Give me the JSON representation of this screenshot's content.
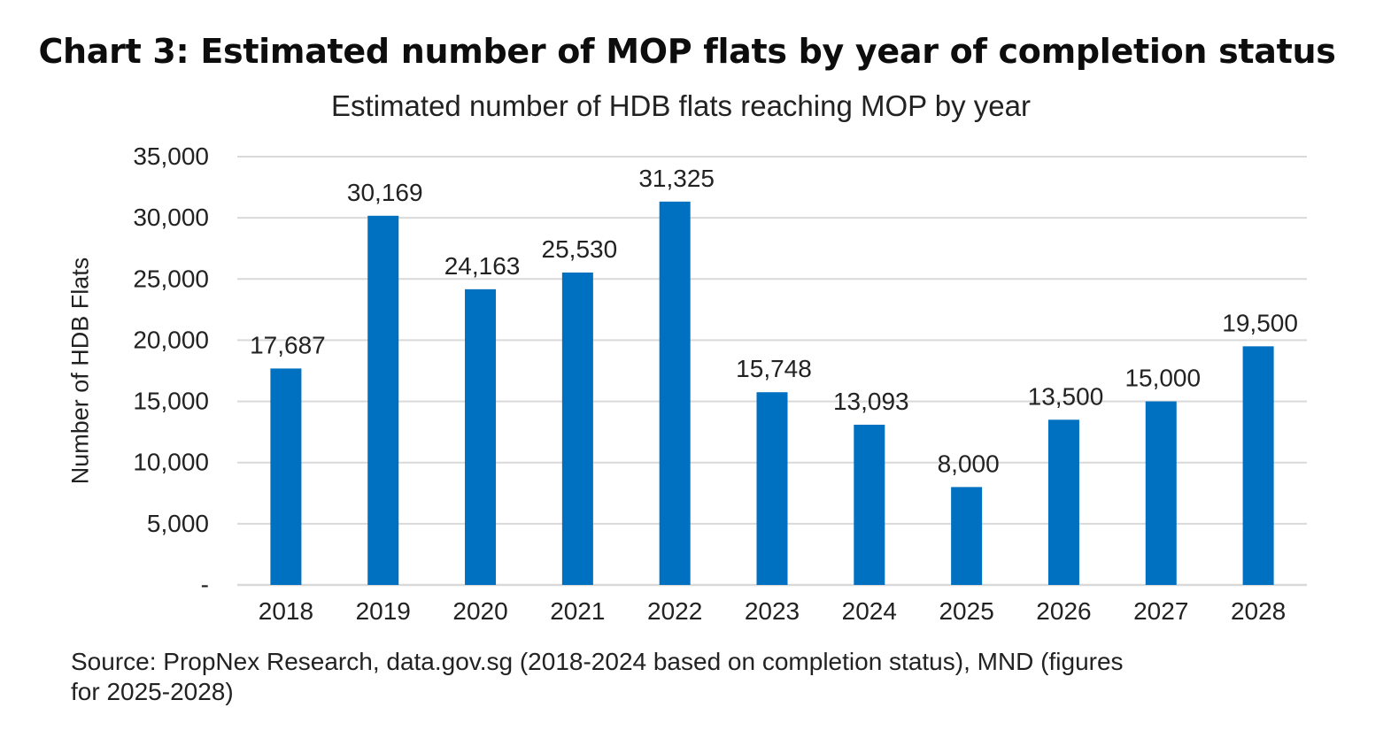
{
  "header": {
    "title": "Chart 3: Estimated number of MOP flats by year of completion status"
  },
  "chart_data": {
    "type": "bar",
    "title": "Estimated number of HDB flats reaching MOP by year",
    "xlabel": "",
    "ylabel": "Number of HDB Flats",
    "categories": [
      "2018",
      "2019",
      "2020",
      "2021",
      "2022",
      "2023",
      "2024",
      "2025",
      "2026",
      "2027",
      "2028"
    ],
    "values": [
      17687,
      30169,
      24163,
      25530,
      31325,
      15748,
      13093,
      8000,
      13500,
      15000,
      19500
    ],
    "data_labels": [
      "17,687",
      "30,169",
      "24,163",
      "25,530",
      "31,325",
      "15,748",
      "13,093",
      "8,000",
      "13,500",
      "15,000",
      "19,500"
    ],
    "ylim": [
      0,
      35000
    ],
    "yticks": [
      0,
      5000,
      10000,
      15000,
      20000,
      25000,
      30000,
      35000
    ],
    "ytick_labels": [
      "-",
      "5,000",
      "10,000",
      "15,000",
      "20,000",
      "25,000",
      "30,000",
      "35,000"
    ],
    "grid": true,
    "bar_color": "#0070c0",
    "grid_color": "#d9d9d9"
  },
  "footer": {
    "source_line1": "Source: PropNex Research, data.gov.sg (2018-2024 based on completion status), MND (figures",
    "source_line2": "for 2025-2028)"
  }
}
